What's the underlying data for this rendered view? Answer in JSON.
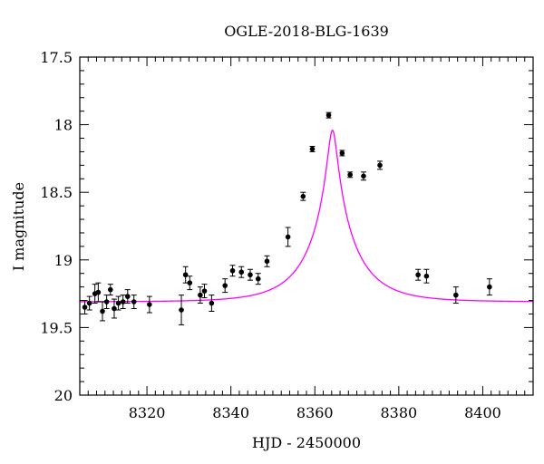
{
  "chart_data": {
    "type": "scatter",
    "title": "OGLE-2018-BLG-1639",
    "xlabel": "HJD - 2450000",
    "ylabel": "I magnitude",
    "xlim": [
      8304,
      8412
    ],
    "ylim": [
      17.5,
      20
    ],
    "y_inverted": true,
    "grid": false,
    "legend": "none",
    "x_ticks": [
      8320,
      8340,
      8360,
      8380,
      8400
    ],
    "x_tick_labels": [
      "8320",
      "8340",
      "8360",
      "8380",
      "8400"
    ],
    "y_ticks": [
      17.5,
      18,
      18.5,
      19,
      19.5,
      20
    ],
    "y_tick_labels": [
      "17.5",
      "18",
      "18.5",
      "19",
      "19.5",
      "20"
    ],
    "x_minor_step": 2,
    "y_minor_step": 0.1,
    "colors": {
      "points": "#000000",
      "model": "#ff00ff",
      "frame": "#000000"
    },
    "series": [
      {
        "kind": "points",
        "x": [
          8305.2,
          8306.3,
          8307.6,
          8308.4,
          8309.4,
          8310.4,
          8311.3,
          8312.2,
          8313.2,
          8314.3,
          8315.4,
          8316.9,
          8320.6,
          8328.2,
          8329.2,
          8330.2,
          8332.7,
          8333.7,
          8335.4,
          8338.6,
          8340.4,
          8342.5,
          8344.6,
          8346.5,
          8348.6,
          8353.6,
          8357.2,
          8359.4,
          8363.3,
          8366.5,
          8368.4,
          8371.6,
          8375.5,
          8384.6,
          8386.6,
          8393.6,
          8401.6
        ],
        "y": [
          19.35,
          19.32,
          19.25,
          19.24,
          19.38,
          19.31,
          19.22,
          19.36,
          19.32,
          19.31,
          19.27,
          19.31,
          19.33,
          19.37,
          19.11,
          19.17,
          19.26,
          19.23,
          19.32,
          19.19,
          19.08,
          19.09,
          19.11,
          19.14,
          19.01,
          18.83,
          18.53,
          18.18,
          17.93,
          18.21,
          18.37,
          18.38,
          18.3,
          19.11,
          19.12,
          19.26,
          19.2
        ],
        "err": [
          0.05,
          0.05,
          0.07,
          0.07,
          0.07,
          0.05,
          0.04,
          0.07,
          0.05,
          0.05,
          0.05,
          0.05,
          0.06,
          0.11,
          0.06,
          0.05,
          0.06,
          0.05,
          0.06,
          0.05,
          0.04,
          0.04,
          0.04,
          0.04,
          0.04,
          0.07,
          0.03,
          0.02,
          0.02,
          0.02,
          0.02,
          0.03,
          0.03,
          0.04,
          0.05,
          0.06,
          0.06
        ]
      },
      {
        "kind": "model",
        "t0": 8364.2,
        "u0": 0.095,
        "tE": 11.2,
        "baseline": 19.31,
        "magnitude_offset": 18.04
      }
    ]
  }
}
